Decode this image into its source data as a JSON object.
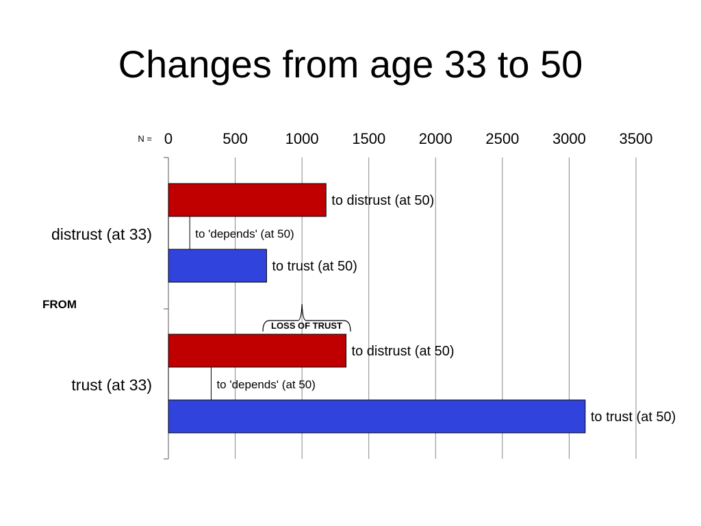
{
  "slide": {
    "title": "Changes from age 33 to 50"
  },
  "chart_data": {
    "type": "bar",
    "orientation": "horizontal",
    "title": "Changes from age 33 to 50",
    "axis_prefix": "N =",
    "xlim": [
      0,
      3500
    ],
    "x_ticks": [
      0,
      500,
      1000,
      1500,
      2000,
      2500,
      3000,
      3500
    ],
    "x_tick_position": "top",
    "grid": true,
    "from_label": "FROM",
    "groups": [
      {
        "label": "distrust (at 33)",
        "bars": [
          {
            "label": "to distrust (at 50)",
            "value": 1180,
            "color": "#c00000"
          },
          {
            "label": "to 'depends' (at 50)",
            "value": 160,
            "color": "#ffffff"
          },
          {
            "label": "to trust (at 50)",
            "value": 735,
            "color": "#3044dd"
          }
        ]
      },
      {
        "label": "trust (at 33)",
        "bars": [
          {
            "label": "to distrust (at 50)",
            "value": 1330,
            "color": "#c00000"
          },
          {
            "label": "to 'depends' (at 50)",
            "value": 320,
            "color": "#ffffff"
          },
          {
            "label": "to trust (at 50)",
            "value": 3120,
            "color": "#3044dd"
          }
        ]
      }
    ],
    "annotation": {
      "text": "LOSS OF TRUST",
      "value": 1000
    }
  }
}
